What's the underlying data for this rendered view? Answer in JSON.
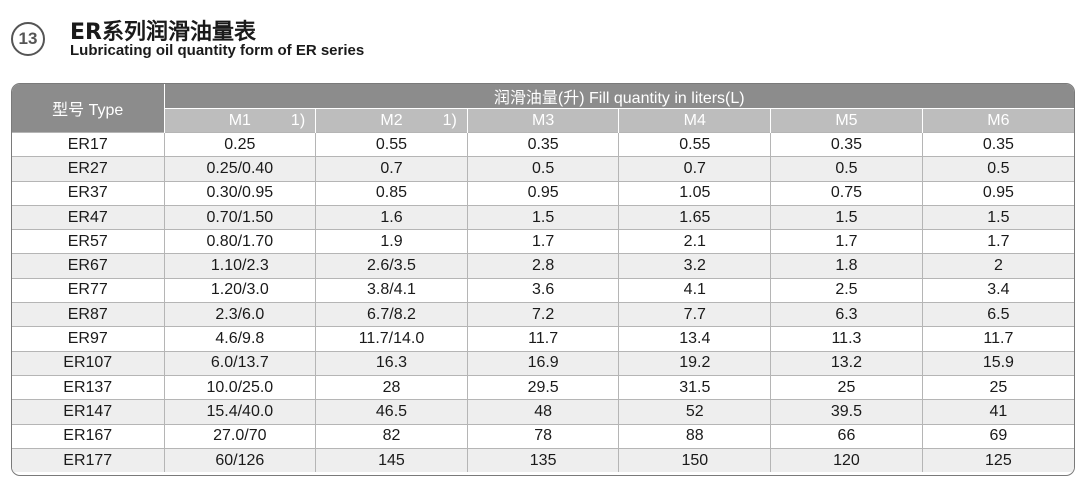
{
  "header": {
    "section_number": "13",
    "title_cn": "ER系列润滑油量表",
    "title_en": "Lubricating oil quantity form of ER series"
  },
  "table": {
    "type_header": "型号 Type",
    "group_header": "润滑油量(升) Fill quantity in liters(L)",
    "columns": [
      {
        "label": "M1",
        "note": "1)"
      },
      {
        "label": "M2",
        "note": "1)"
      },
      {
        "label": "M3",
        "note": ""
      },
      {
        "label": "M4",
        "note": ""
      },
      {
        "label": "M5",
        "note": ""
      },
      {
        "label": "M6",
        "note": ""
      }
    ],
    "rows": [
      [
        "ER17",
        "0.25",
        "0.55",
        "0.35",
        "0.55",
        "0.35",
        "0.35"
      ],
      [
        "ER27",
        "0.25/0.40",
        "0.7",
        "0.5",
        "0.7",
        "0.5",
        "0.5"
      ],
      [
        "ER37",
        "0.30/0.95",
        "0.85",
        "0.95",
        "1.05",
        "0.75",
        "0.95"
      ],
      [
        "ER47",
        "0.70/1.50",
        "1.6",
        "1.5",
        "1.65",
        "1.5",
        "1.5"
      ],
      [
        "ER57",
        "0.80/1.70",
        "1.9",
        "1.7",
        "2.1",
        "1.7",
        "1.7"
      ],
      [
        "ER67",
        "1.10/2.3",
        "2.6/3.5",
        "2.8",
        "3.2",
        "1.8",
        "2"
      ],
      [
        "ER77",
        "1.20/3.0",
        "3.8/4.1",
        "3.6",
        "4.1",
        "2.5",
        "3.4"
      ],
      [
        "ER87",
        "2.3/6.0",
        "6.7/8.2",
        "7.2",
        "7.7",
        "6.3",
        "6.5"
      ],
      [
        "ER97",
        "4.6/9.8",
        "11.7/14.0",
        "11.7",
        "13.4",
        "11.3",
        "11.7"
      ],
      [
        "ER107",
        "6.0/13.7",
        "16.3",
        "16.9",
        "19.2",
        "13.2",
        "15.9"
      ],
      [
        "ER137",
        "10.0/25.0",
        "28",
        "29.5",
        "31.5",
        "25",
        "25"
      ],
      [
        "ER147",
        "15.4/40.0",
        "46.5",
        "48",
        "52",
        "39.5",
        "41"
      ],
      [
        "ER167",
        "27.0/70",
        "82",
        "78",
        "88",
        "66",
        "69"
      ],
      [
        "ER177",
        "60/126",
        "145",
        "135",
        "150",
        "120",
        "125"
      ]
    ]
  }
}
